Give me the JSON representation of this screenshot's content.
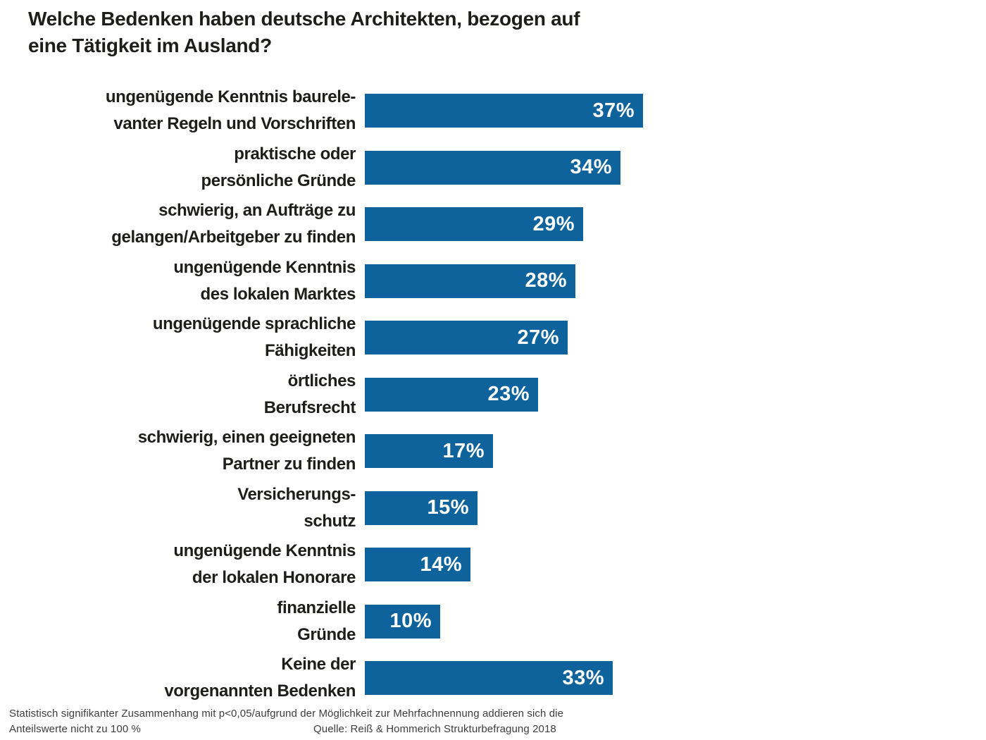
{
  "title": {
    "line1": "Welche Bedenken haben deutsche Architekten, bezogen auf",
    "line2": "eine Tätigkeit im Ausland?"
  },
  "chart_data": {
    "type": "bar",
    "orientation": "horizontal",
    "unit": "%",
    "title": "Welche Bedenken haben deutsche Architekten, bezogen auf eine Tätigkeit im Ausland?",
    "categories": [
      "ungenügende Kenntnis baurelevanter Regeln und Vorschriften",
      "praktische oder persönliche Gründe",
      "schwierig, an Aufträge zu gelangen/Arbeitgeber zu finden",
      "ungenügende Kenntnis des lokalen Marktes",
      "ungenügende sprachliche Fähigkeiten",
      "örtliches Berufsrecht",
      "schwierig, einen geeigneten Partner zu finden",
      "Versicherungsschutz",
      "ungenügende Kenntnis der lokalen Honorare",
      "finanzielle Gründe",
      "Keine der vorgenannten Bedenken"
    ],
    "values": [
      37,
      34,
      29,
      28,
      27,
      23,
      17,
      15,
      14,
      10,
      33
    ],
    "xlim": [
      0,
      40
    ],
    "grid": false,
    "legend": "none",
    "bar_color": "#0f639c",
    "value_label_color": "#ffffff"
  },
  "rows": [
    {
      "label_line1": "ungenügende Kenntnis baurele-",
      "label_line2": "vanter Regeln und Vorschriften",
      "value": 37,
      "value_label": "37%"
    },
    {
      "label_line1": "praktische oder",
      "label_line2": "persönliche Gründe",
      "value": 34,
      "value_label": "34%"
    },
    {
      "label_line1": "schwierig, an Aufträge zu",
      "label_line2": "gelangen/Arbeitgeber zu finden",
      "value": 29,
      "value_label": "29%"
    },
    {
      "label_line1": "ungenügende Kenntnis",
      "label_line2": "des lokalen Marktes",
      "value": 28,
      "value_label": "28%"
    },
    {
      "label_line1": "ungenügende sprachliche",
      "label_line2": "Fähigkeiten",
      "value": 27,
      "value_label": "27%"
    },
    {
      "label_line1": "örtliches",
      "label_line2": "Berufsrecht",
      "value": 23,
      "value_label": "23%"
    },
    {
      "label_line1": "schwierig, einen geeigneten",
      "label_line2": "Partner zu finden",
      "value": 17,
      "value_label": "17%"
    },
    {
      "label_line1": "Versicherungs-",
      "label_line2": "schutz",
      "value": 15,
      "value_label": "15%"
    },
    {
      "label_line1": "ungenügende Kenntnis",
      "label_line2": "der lokalen Honorare",
      "value": 14,
      "value_label": "14%"
    },
    {
      "label_line1": "finanzielle",
      "label_line2": "Gründe",
      "value": 10,
      "value_label": "10%"
    },
    {
      "label_line1": "Keine der",
      "label_line2": "vorgenannten Bedenken",
      "value": 33,
      "value_label": "33%"
    }
  ],
  "footer": {
    "line1": "Statistisch signifikanter Zusammenhang mit p<0,05/aufgrund der Möglichkeit zur Mehrfachnennung addieren sich die",
    "line2_left": "Anteilswerte nicht zu 100 %",
    "source": "Quelle: Reiß & Hommerich Strukturbefragung 2018"
  }
}
